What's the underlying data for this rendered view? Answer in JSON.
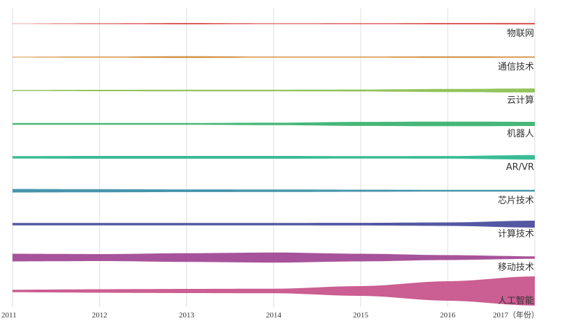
{
  "chart_data": {
    "type": "area",
    "x": [
      2011,
      2012,
      2013,
      2014,
      2015,
      2016,
      2017
    ],
    "x_tick_labels": [
      "2011",
      "2012",
      "2013",
      "2014",
      "2015",
      "2016",
      "2017（年份）"
    ],
    "xlabel": "",
    "ylabel": "",
    "grid": true,
    "series": [
      {
        "name": "物联网",
        "color": "#d9534f",
        "values": [
          0.6,
          1.2,
          2.0,
          1.2,
          1.4,
          2.0,
          2.2
        ]
      },
      {
        "name": "通信技术",
        "color": "#d08a3a",
        "values": [
          1.0,
          1.5,
          2.4,
          1.5,
          1.6,
          2.0,
          1.8
        ]
      },
      {
        "name": "云计算",
        "color": "#8cc152",
        "values": [
          1.5,
          2.0,
          2.2,
          2.2,
          2.8,
          4.4,
          5.8
        ]
      },
      {
        "name": "机器人",
        "color": "#3cb371",
        "values": [
          2.4,
          2.4,
          2.6,
          3.4,
          5.8,
          6.6,
          6.0
        ]
      },
      {
        "name": "AR/VR",
        "color": "#2fb88f",
        "values": [
          3.6,
          4.0,
          4.0,
          4.0,
          3.6,
          3.8,
          6.4
        ]
      },
      {
        "name": "芯片技术",
        "color": "#3c8fa8",
        "values": [
          5.0,
          4.4,
          3.8,
          3.6,
          3.0,
          2.6,
          2.4
        ]
      },
      {
        "name": "计算技术",
        "color": "#4b4f9e",
        "values": [
          3.6,
          3.6,
          3.6,
          3.6,
          3.8,
          5.0,
          10.0
        ]
      },
      {
        "name": "移动技术",
        "color": "#a24a96",
        "values": [
          11.0,
          10.0,
          12.5,
          14.5,
          11.0,
          7.0,
          3.6
        ]
      },
      {
        "name": "人工智能",
        "color": "#c8558c",
        "values": [
          3.6,
          5.0,
          6.0,
          6.5,
          14.0,
          28.0,
          42.0
        ]
      }
    ]
  }
}
